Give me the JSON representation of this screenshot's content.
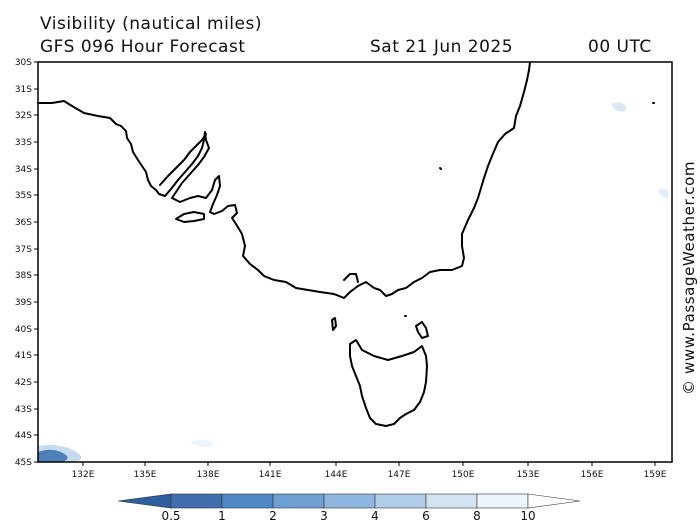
{
  "header": {
    "title": "Visibility (nautical miles)",
    "subtitle": "GFS 096 Hour Forecast",
    "date": "Sat 21 Jun 2025",
    "time": "00 UTC"
  },
  "map": {
    "lat_ticks": [
      "30S",
      "31S",
      "32S",
      "33S",
      "34S",
      "35S",
      "36S",
      "37S",
      "38S",
      "39S",
      "40S",
      "41S",
      "42S",
      "43S",
      "44S",
      "45S"
    ],
    "lon_ticks": [
      "132E",
      "135E",
      "138E",
      "141E",
      "144E",
      "147E",
      "150E",
      "153E",
      "156E",
      "159E"
    ],
    "coastline_color": "#000000",
    "low_visibility_color": "#4f7fb8"
  },
  "colorbar": {
    "labels": [
      "0.5",
      "1",
      "2",
      "3",
      "4",
      "6",
      "8",
      "10"
    ],
    "colors": [
      "#3f6fae",
      "#4e86c6",
      "#6d9fd3",
      "#8fb6de",
      "#b2cde8",
      "#d3e3f2",
      "#eef4fb"
    ]
  },
  "credit": "© www.PassageWeather.com"
}
